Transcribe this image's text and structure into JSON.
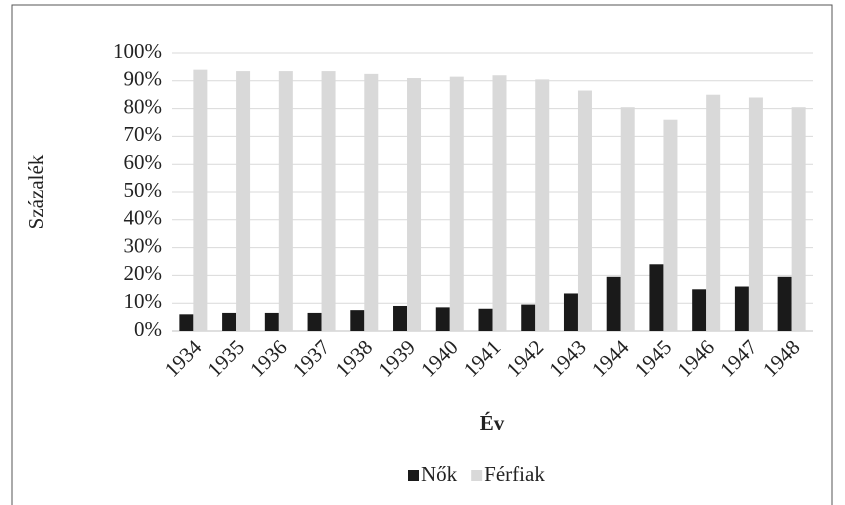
{
  "chart_data": {
    "type": "bar",
    "x_label": "Év",
    "y_label": "Százalék",
    "categories": [
      "1934",
      "1935",
      "1936",
      "1937",
      "1938",
      "1939",
      "1940",
      "1941",
      "1942",
      "1943",
      "1944",
      "1945",
      "1946",
      "1947",
      "1948"
    ],
    "series": [
      {
        "name": "Nők",
        "color": "#1a1a1a",
        "values": [
          6,
          6.5,
          6.5,
          6.5,
          7.5,
          9,
          8.5,
          8,
          9.5,
          13.5,
          19.5,
          24,
          15,
          16,
          19.5
        ]
      },
      {
        "name": "Férfiak",
        "color": "#d9d9d9",
        "values": [
          94,
          93.5,
          93.5,
          93.5,
          92.5,
          91,
          91.5,
          92,
          90.5,
          86.5,
          80.5,
          76,
          85,
          84,
          80.5
        ]
      }
    ],
    "ylim": [
      0,
      100
    ],
    "yticks": [
      {
        "value": 0,
        "label": "0%"
      },
      {
        "value": 10,
        "label": "10%"
      },
      {
        "value": 20,
        "label": "20%"
      },
      {
        "value": 30,
        "label": "30%"
      },
      {
        "value": 40,
        "label": "40%"
      },
      {
        "value": 50,
        "label": "50%"
      },
      {
        "value": 60,
        "label": "60%"
      },
      {
        "value": 70,
        "label": "70%"
      },
      {
        "value": 80,
        "label": "80%"
      },
      {
        "value": 90,
        "label": "90%"
      },
      {
        "value": 100,
        "label": "100%"
      }
    ],
    "grid": true,
    "legend": "bottom"
  }
}
